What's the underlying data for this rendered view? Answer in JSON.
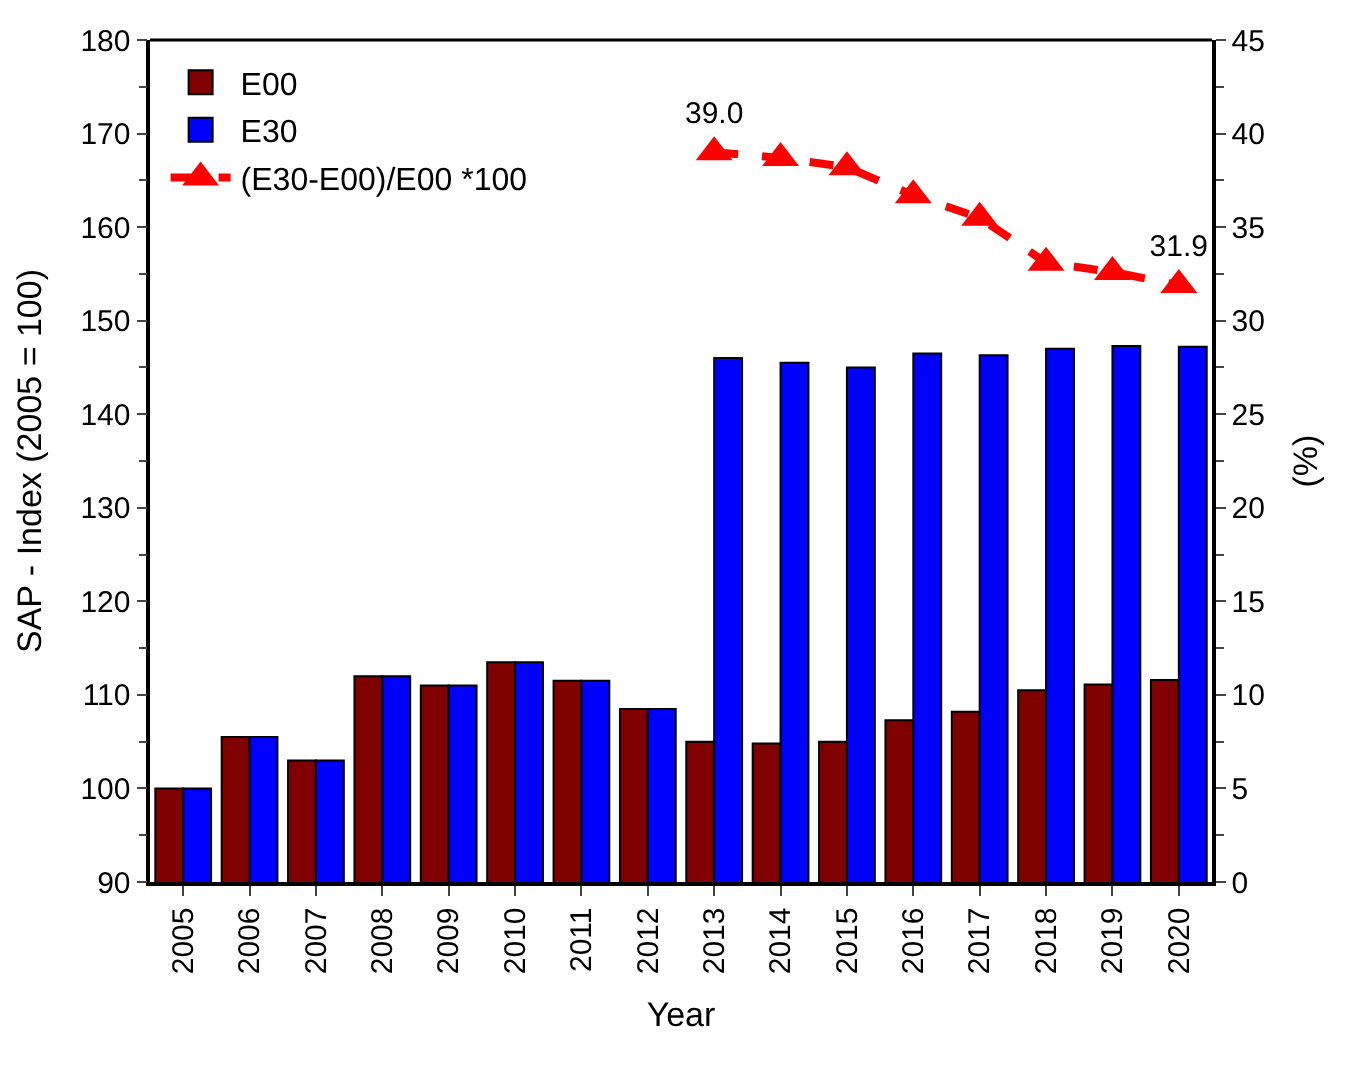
{
  "chart_data": {
    "type": "bar",
    "xlabel": "Year",
    "ylabel": "SAP - Index (2005 = 100)",
    "y2label": "(%)",
    "categories": [
      "2005",
      "2006",
      "2007",
      "2008",
      "2009",
      "2010",
      "2011",
      "2012",
      "2013",
      "2014",
      "2015",
      "2016",
      "2017",
      "2018",
      "2019",
      "2020"
    ],
    "series": [
      {
        "name": "E00",
        "color": "#800000",
        "values": [
          100,
          105.5,
          103,
          112,
          111,
          113.5,
          111.5,
          108.5,
          105,
          104.8,
          105,
          107.3,
          108.2,
          110.5,
          111.1,
          111.6
        ]
      },
      {
        "name": "E30",
        "color": "#0000ff",
        "values": [
          100,
          105.5,
          103,
          112,
          111,
          113.5,
          111.5,
          108.5,
          146,
          145.5,
          145,
          146.5,
          146.3,
          147,
          147.3,
          147.2
        ]
      },
      {
        "name": "(E30-E00)/E00 *100",
        "type": "line",
        "axis": "y2",
        "color": "#ff0000",
        "marker": "triangle",
        "line_style": "dashed",
        "values": [
          null,
          null,
          null,
          null,
          null,
          null,
          null,
          null,
          39.0,
          38.7,
          38.2,
          36.7,
          35.5,
          33.1,
          32.6,
          31.9
        ],
        "value_labels": [
          null,
          null,
          null,
          null,
          null,
          null,
          null,
          null,
          "39.0",
          null,
          null,
          null,
          null,
          null,
          null,
          "31.9"
        ]
      }
    ],
    "ylim": [
      90,
      180
    ],
    "yticks": [
      90,
      100,
      110,
      120,
      130,
      140,
      150,
      160,
      170,
      180
    ],
    "y2lim": [
      0,
      45
    ],
    "y2ticks": [
      0,
      5,
      10,
      15,
      20,
      25,
      30,
      35,
      40,
      45
    ],
    "legend": "top left"
  }
}
